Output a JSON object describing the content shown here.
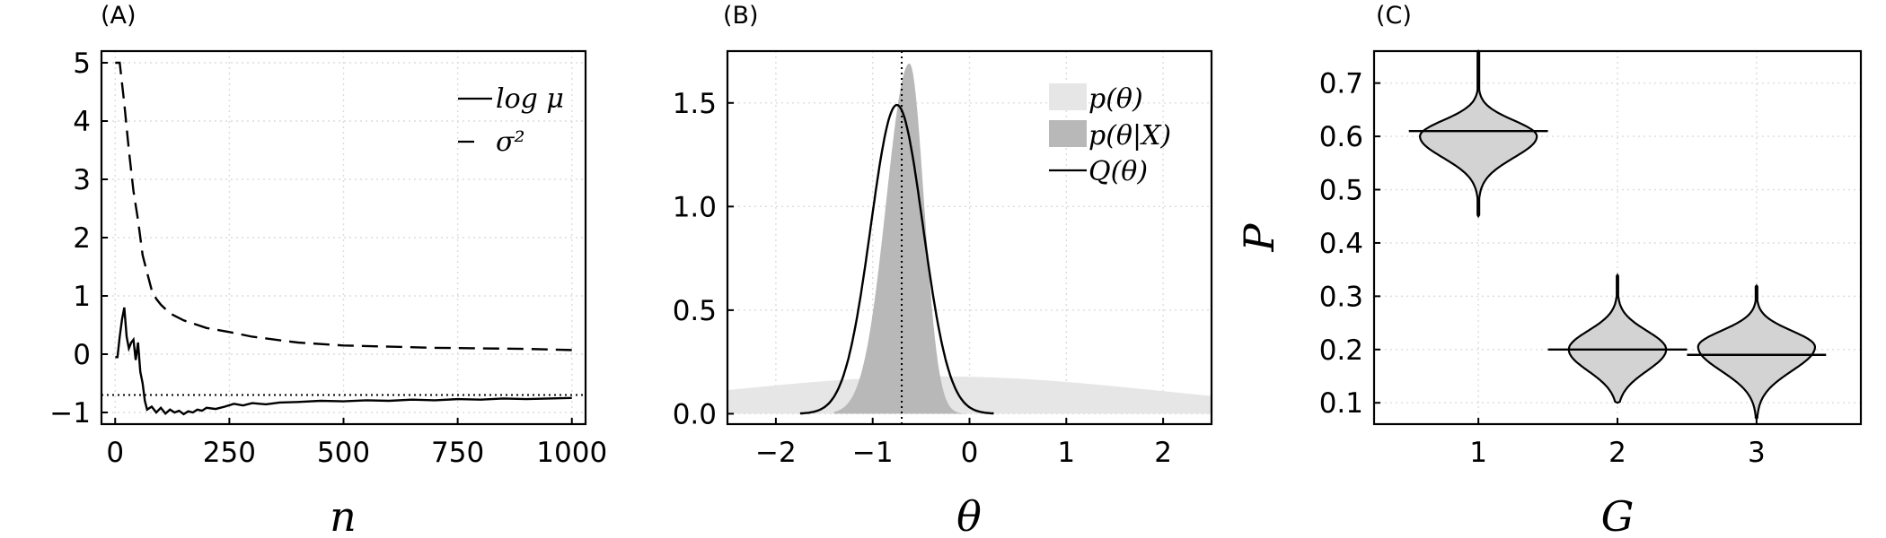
{
  "chart_data": [
    {
      "panel_label": "(A)",
      "type": "line",
      "xlabel": "n",
      "ylabel": "",
      "xlim": [
        -30,
        1030
      ],
      "ylim": [
        -1.2,
        5.2
      ],
      "xticks": [
        0,
        250,
        500,
        750,
        1000
      ],
      "xtick_labels": [
        "0",
        "250",
        "500",
        "750",
        "1000"
      ],
      "yticks": [
        -1,
        0,
        1,
        2,
        3,
        4,
        5
      ],
      "ytick_labels": [
        "−1",
        "0",
        "1",
        "2",
        "3",
        "4",
        "5"
      ],
      "grid": true,
      "legend_position": "top-right",
      "hline": {
        "y": -0.7,
        "style": "dotted"
      },
      "series": [
        {
          "name": "log μ",
          "style": "solid",
          "x": [
            0,
            5,
            10,
            15,
            20,
            25,
            30,
            35,
            40,
            45,
            50,
            55,
            60,
            65,
            70,
            80,
            90,
            100,
            110,
            120,
            130,
            140,
            150,
            160,
            170,
            180,
            190,
            200,
            220,
            240,
            260,
            280,
            300,
            330,
            360,
            400,
            450,
            500,
            550,
            600,
            650,
            700,
            750,
            800,
            850,
            900,
            950,
            1000
          ],
          "y": [
            -0.05,
            -0.05,
            0.3,
            0.6,
            0.8,
            0.3,
            0.1,
            0.2,
            0.25,
            -0.1,
            0.2,
            -0.3,
            -0.5,
            -0.8,
            -0.95,
            -0.9,
            -1.0,
            -0.92,
            -1.02,
            -0.95,
            -1.0,
            -0.97,
            -1.03,
            -0.98,
            -1.0,
            -0.95,
            -0.97,
            -0.92,
            -0.94,
            -0.9,
            -0.85,
            -0.88,
            -0.84,
            -0.86,
            -0.83,
            -0.82,
            -0.8,
            -0.81,
            -0.79,
            -0.8,
            -0.78,
            -0.79,
            -0.77,
            -0.78,
            -0.76,
            -0.77,
            -0.76,
            -0.75
          ]
        },
        {
          "name": "σ²",
          "style": "dashed",
          "x": [
            0,
            10,
            20,
            30,
            40,
            50,
            60,
            70,
            80,
            90,
            100,
            120,
            150,
            200,
            250,
            300,
            400,
            500,
            600,
            700,
            800,
            900,
            1000
          ],
          "y": [
            5.0,
            5.0,
            4.3,
            3.5,
            2.8,
            2.3,
            1.7,
            1.4,
            1.1,
            0.95,
            0.85,
            0.7,
            0.58,
            0.45,
            0.38,
            0.3,
            0.2,
            0.15,
            0.13,
            0.11,
            0.1,
            0.09,
            0.07
          ]
        }
      ],
      "legend": [
        "log μ",
        "σ²"
      ]
    },
    {
      "panel_label": "(B)",
      "type": "area",
      "xlabel": "θ",
      "ylabel": "",
      "xlim": [
        -2.5,
        2.5
      ],
      "ylim": [
        -0.05,
        1.75
      ],
      "xticks": [
        -2,
        -1,
        0,
        1,
        2
      ],
      "xtick_labels": [
        "−2",
        "−1",
        "0",
        "1",
        "2"
      ],
      "yticks": [
        0.0,
        0.5,
        1.0,
        1.5
      ],
      "ytick_labels": [
        "0.0",
        "0.5",
        "1.0",
        "1.5"
      ],
      "grid": true,
      "legend_position": "top-right",
      "vline": {
        "x": -0.7,
        "style": "dotted"
      },
      "series": [
        {
          "name": "p(θ)",
          "kind": "filled-density",
          "color": "#e6e6e6",
          "mean": -0.3,
          "sd": 2.3,
          "peak": 0.18
        },
        {
          "name": "p(θ|X)",
          "kind": "filled-density",
          "color": "#b8b8b8",
          "mean": -0.62,
          "sd_left": 0.24,
          "sd_right": 0.15,
          "peak": 1.69
        },
        {
          "name": "Q(θ)",
          "kind": "line-density",
          "color": "#000000",
          "mean": -0.75,
          "sd": 0.27,
          "peak": 1.49,
          "x_range": [
            -1.75,
            0.25
          ]
        }
      ],
      "legend": [
        "p(θ)",
        "p(θ|X)",
        "Q(θ)"
      ]
    },
    {
      "panel_label": "(C)",
      "type": "violin",
      "xlabel": "G",
      "ylabel": "P",
      "xlim": [
        0.25,
        3.75
      ],
      "ylim": [
        0.06,
        0.76
      ],
      "xticks": [
        1,
        2,
        3
      ],
      "xtick_labels": [
        "1",
        "2",
        "3"
      ],
      "yticks": [
        0.1,
        0.2,
        0.3,
        0.4,
        0.5,
        0.6,
        0.7
      ],
      "ytick_labels": [
        "0.1",
        "0.2",
        "0.3",
        "0.4",
        "0.5",
        "0.6",
        "0.7"
      ],
      "grid": true,
      "fill_color": "#d3d3d3",
      "violins": [
        {
          "category": 1,
          "min": 0.45,
          "max": 0.76,
          "median": 0.61,
          "mode": 0.6,
          "sd_low": 0.04,
          "sd_high": 0.03,
          "half_width": 0.42
        },
        {
          "category": 2,
          "min": 0.1,
          "max": 0.34,
          "median": 0.2,
          "mode": 0.2,
          "sd_low": 0.04,
          "sd_high": 0.035,
          "half_width": 0.35
        },
        {
          "category": 3,
          "min": 0.07,
          "max": 0.32,
          "median": 0.19,
          "mode": 0.205,
          "sd_low": 0.045,
          "sd_high": 0.03,
          "half_width": 0.42
        }
      ]
    }
  ]
}
